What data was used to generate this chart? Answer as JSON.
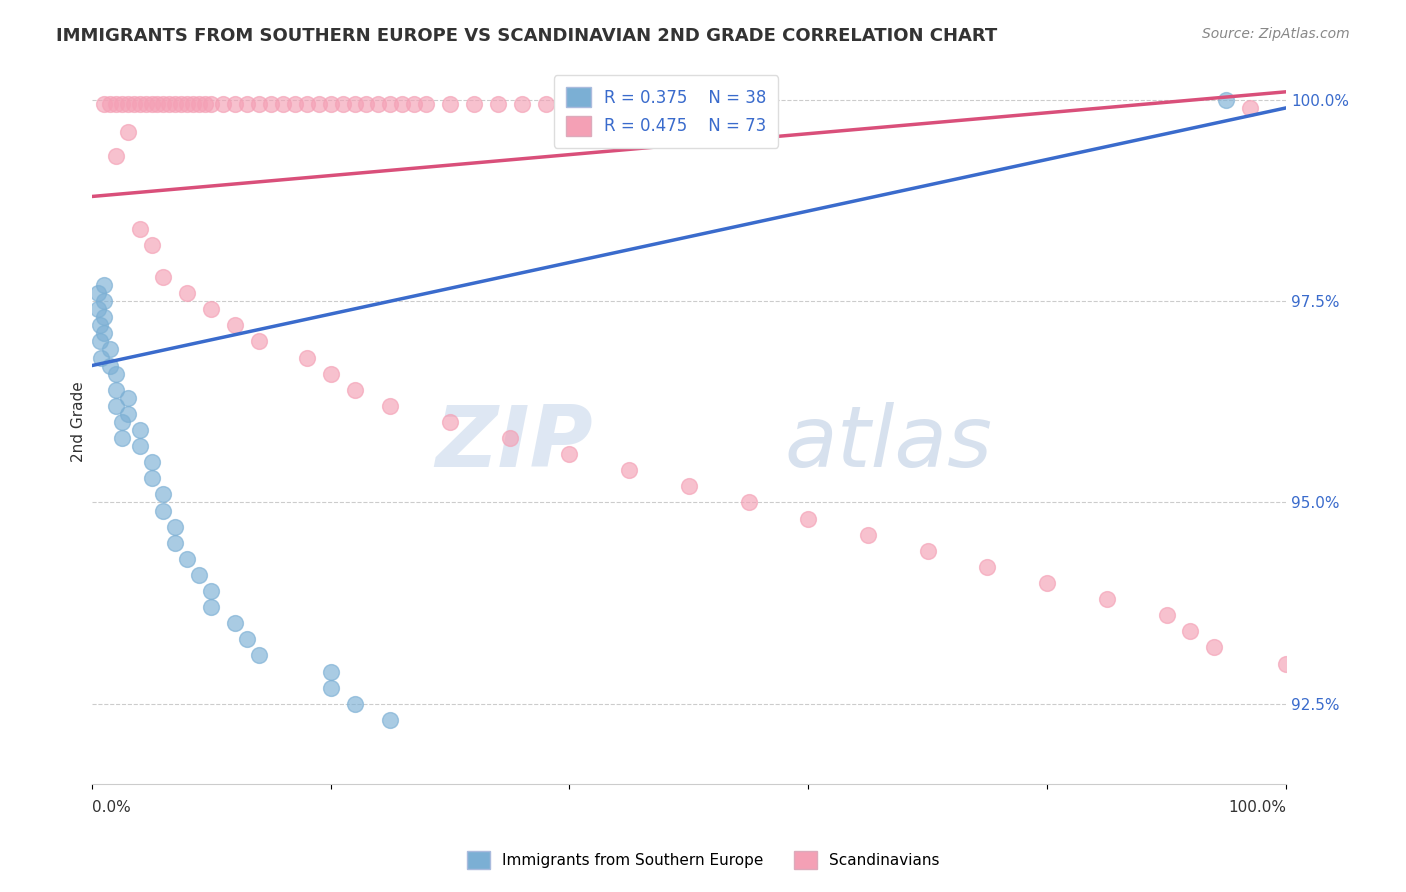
{
  "title": "IMMIGRANTS FROM SOUTHERN EUROPE VS SCANDINAVIAN 2ND GRADE CORRELATION CHART",
  "source": "Source: ZipAtlas.com",
  "ylabel": "2nd Grade",
  "watermark_zip": "ZIP",
  "watermark_atlas": "atlas",
  "xlim": [
    0.0,
    1.0
  ],
  "ylim": [
    0.915,
    1.005
  ],
  "yticks": [
    0.925,
    0.95,
    0.975,
    1.0
  ],
  "ytick_labels": [
    "92.5%",
    "95.0%",
    "97.5%",
    "100.0%"
  ],
  "blue_color": "#7bafd4",
  "pink_color": "#f4a0b5",
  "blue_line_color": "#3a6bcc",
  "pink_line_color": "#d94f7a",
  "legend_R_blue": "R = 0.375",
  "legend_N_blue": "N = 38",
  "legend_R_pink": "R = 0.475",
  "legend_N_pink": "N = 73",
  "blue_x": [
    0.005,
    0.005,
    0.007,
    0.007,
    0.008,
    0.01,
    0.01,
    0.01,
    0.01,
    0.015,
    0.015,
    0.02,
    0.02,
    0.02,
    0.025,
    0.025,
    0.03,
    0.03,
    0.04,
    0.04,
    0.05,
    0.05,
    0.06,
    0.06,
    0.07,
    0.07,
    0.08,
    0.09,
    0.1,
    0.1,
    0.12,
    0.13,
    0.14,
    0.2,
    0.2,
    0.22,
    0.25,
    0.95
  ],
  "blue_y": [
    0.976,
    0.974,
    0.972,
    0.97,
    0.968,
    0.977,
    0.975,
    0.973,
    0.971,
    0.969,
    0.967,
    0.966,
    0.964,
    0.962,
    0.96,
    0.958,
    0.963,
    0.961,
    0.959,
    0.957,
    0.955,
    0.953,
    0.951,
    0.949,
    0.947,
    0.945,
    0.943,
    0.941,
    0.939,
    0.937,
    0.935,
    0.933,
    0.931,
    0.929,
    0.927,
    0.925,
    0.923,
    1.0
  ],
  "pink_x_top": [
    0.01,
    0.015,
    0.02,
    0.025,
    0.03,
    0.035,
    0.04,
    0.045,
    0.05,
    0.055,
    0.06,
    0.065,
    0.07,
    0.075,
    0.08,
    0.085,
    0.09,
    0.095,
    0.1,
    0.11,
    0.12,
    0.13,
    0.14,
    0.15,
    0.16,
    0.17,
    0.18,
    0.19,
    0.2,
    0.21,
    0.22,
    0.23,
    0.24,
    0.25,
    0.26,
    0.27,
    0.28,
    0.3,
    0.32,
    0.34,
    0.36,
    0.38,
    0.4
  ],
  "pink_y_top": [
    0.9995,
    0.9995,
    0.9995,
    0.9995,
    0.9995,
    0.9995,
    0.9995,
    0.9995,
    0.9995,
    0.9995,
    0.9995,
    0.9995,
    0.9995,
    0.9995,
    0.9995,
    0.9995,
    0.9995,
    0.9995,
    0.9995,
    0.9995,
    0.9995,
    0.9995,
    0.9995,
    0.9995,
    0.9995,
    0.9995,
    0.9995,
    0.9995,
    0.9995,
    0.9995,
    0.9995,
    0.9995,
    0.9995,
    0.9995,
    0.9995,
    0.9995,
    0.9995,
    0.9995,
    0.9995,
    0.9995,
    0.9995,
    0.9995,
    0.9995
  ],
  "pink_x_mid": [
    0.02,
    0.03,
    0.04,
    0.05,
    0.06,
    0.08,
    0.1,
    0.12,
    0.14,
    0.18,
    0.2,
    0.22,
    0.25,
    0.3,
    0.35,
    0.4,
    0.45,
    0.5,
    0.55,
    0.6,
    0.65,
    0.7,
    0.75,
    0.8,
    0.85,
    0.9,
    0.92,
    0.94,
    1.0,
    0.97
  ],
  "pink_y_mid": [
    0.993,
    0.996,
    0.984,
    0.982,
    0.978,
    0.976,
    0.974,
    0.972,
    0.97,
    0.968,
    0.966,
    0.964,
    0.962,
    0.96,
    0.958,
    0.956,
    0.954,
    0.952,
    0.95,
    0.948,
    0.946,
    0.944,
    0.942,
    0.94,
    0.938,
    0.936,
    0.934,
    0.932,
    0.93,
    0.999
  ],
  "blue_line_x": [
    0.0,
    1.0
  ],
  "blue_line_y": [
    0.967,
    0.999
  ],
  "pink_line_x": [
    0.0,
    1.0
  ],
  "pink_line_y": [
    0.988,
    1.001
  ]
}
